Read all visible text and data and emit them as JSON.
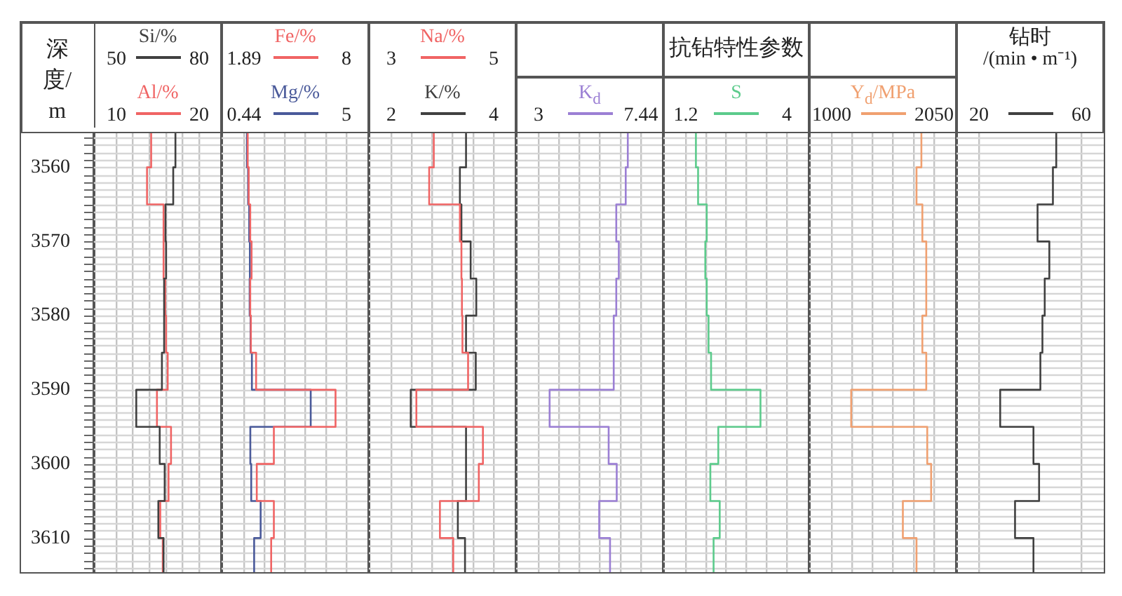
{
  "chart_data": [
    {
      "type": "step",
      "orientation": "horizontal",
      "ylabel": "深度/m",
      "x": [
        3555.4,
        3560,
        3565,
        3570,
        3575,
        3580,
        3585,
        3590,
        3595,
        3600,
        3605,
        3610,
        3614.6
      ],
      "series": [
        {
          "name": "Si/%",
          "color": "#404040",
          "values": [
            71.4,
            70.6,
            67.8,
            68.0,
            67.3,
            67.3,
            66.5,
            57.2,
            65.7,
            67.5,
            65.2,
            67.1,
            67.1
          ]
        },
        {
          "name": "Al/%",
          "color": "#f06464",
          "axis": "x2",
          "values": [
            14.2,
            13.7,
            15.7,
            15.7,
            15.9,
            16.0,
            16.2,
            14.9,
            16.6,
            16.3,
            15.3,
            15.6,
            15.6
          ]
        }
      ],
      "xlim": [
        50,
        80
      ],
      "xticks": [
        50,
        {
          "value": 56,
          "label": null
        },
        {
          "value": 62,
          "label": null
        },
        {
          "value": 68,
          "label": null
        },
        {
          "value": 74,
          "label": null
        },
        80
      ],
      "x2lim": [
        10,
        20
      ],
      "x2ticks": [
        10,
        20
      ],
      "ylim": [
        3614.6,
        3555.4
      ],
      "yticks": [
        {
          "value": 3556,
          "label": null
        },
        {
          "value": 3557,
          "label": null
        },
        {
          "value": 3558,
          "label": null
        },
        {
          "value": 3559,
          "label": null
        },
        3560,
        {
          "value": 3561,
          "label": null
        },
        {
          "value": 3562,
          "label": null
        },
        {
          "value": 3563,
          "label": null
        },
        {
          "value": 3564,
          "label": null
        },
        {
          "value": 3565,
          "label": null
        },
        {
          "value": 3566,
          "label": null
        },
        {
          "value": 3567,
          "label": null
        },
        {
          "value": 3568,
          "label": null
        },
        {
          "value": 3569,
          "label": null
        },
        3570,
        {
          "value": 3571,
          "label": null
        },
        {
          "value": 3572,
          "label": null
        },
        {
          "value": 3573,
          "label": null
        },
        {
          "value": 3574,
          "label": null
        },
        {
          "value": 3575,
          "label": null
        },
        {
          "value": 3576,
          "label": null
        },
        {
          "value": 3577,
          "label": null
        },
        {
          "value": 3578,
          "label": null
        },
        {
          "value": 3579,
          "label": null
        },
        3580,
        {
          "value": 3581,
          "label": null
        },
        {
          "value": 3582,
          "label": null
        },
        {
          "value": 3583,
          "label": null
        },
        {
          "value": 3584,
          "label": null
        },
        {
          "value": 3585,
          "label": null
        },
        {
          "value": 3586,
          "label": null
        },
        {
          "value": 3587,
          "label": null
        },
        {
          "value": 3588,
          "label": null
        },
        {
          "value": 3589,
          "label": null
        },
        3590,
        {
          "value": 3591,
          "label": null
        },
        {
          "value": 3592,
          "label": null
        },
        {
          "value": 3593,
          "label": null
        },
        {
          "value": 3594,
          "label": null
        },
        {
          "value": 3595,
          "label": null
        },
        {
          "value": 3596,
          "label": null
        },
        {
          "value": 3597,
          "label": null
        },
        {
          "value": 3598,
          "label": null
        },
        {
          "value": 3599,
          "label": null
        },
        3600,
        {
          "value": 3601,
          "label": null
        },
        {
          "value": 3602,
          "label": null
        },
        {
          "value": 3603,
          "label": null
        },
        {
          "value": 3604,
          "label": null
        },
        {
          "value": 3605,
          "label": null
        },
        {
          "value": 3606,
          "label": null
        },
        {
          "value": 3607,
          "label": null
        },
        {
          "value": 3608,
          "label": null
        },
        {
          "value": 3609,
          "label": null
        },
        3610,
        {
          "value": 3611,
          "label": null
        },
        {
          "value": 3612,
          "label": null
        },
        {
          "value": 3613,
          "label": null
        },
        {
          "value": 3614,
          "label": null
        }
      ],
      "grid": true,
      "legend": "top"
    },
    {
      "type": "step",
      "orientation": "horizontal",
      "x": [
        3555.4,
        3560,
        3565,
        3570,
        3575,
        3580,
        3585,
        3590,
        3595,
        3600,
        3605,
        3610,
        3614.6
      ],
      "series": [
        {
          "name": "Fe/%",
          "color": "#f06464",
          "values": [
            2.11,
            2.17,
            2.26,
            2.34,
            2.26,
            2.3,
            2.61,
            7.35,
            3.67,
            2.65,
            3.67,
            3.51,
            3.51
          ]
        },
        {
          "name": "Mg/%",
          "color": "#4a5a9a",
          "axis": "x2",
          "values": [
            0.57,
            0.62,
            0.67,
            0.7,
            0.69,
            0.73,
            0.79,
            3.41,
            0.72,
            0.76,
            1.18,
            0.89,
            0.89
          ]
        }
      ],
      "xlim": [
        1.89,
        8
      ],
      "xticks": [
        1.89,
        {
          "value": 3.11,
          "label": null
        },
        {
          "value": 4.33,
          "label": null
        },
        {
          "value": 5.56,
          "label": null
        },
        {
          "value": 6.78,
          "label": null
        },
        8
      ],
      "x2lim": [
        0.44,
        5
      ],
      "x2ticks": [
        0.44,
        5
      ],
      "ylim": [
        3614.6,
        3555.4
      ],
      "yticks": [
        {
          "value": 3556,
          "label": null
        },
        {
          "value": 3557,
          "label": null
        },
        {
          "value": 3558,
          "label": null
        },
        {
          "value": 3559,
          "label": null
        },
        3560,
        {
          "value": 3561,
          "label": null
        },
        {
          "value": 3562,
          "label": null
        },
        {
          "value": 3563,
          "label": null
        },
        {
          "value": 3564,
          "label": null
        },
        {
          "value": 3565,
          "label": null
        },
        {
          "value": 3566,
          "label": null
        },
        {
          "value": 3567,
          "label": null
        },
        {
          "value": 3568,
          "label": null
        },
        {
          "value": 3569,
          "label": null
        },
        3570,
        {
          "value": 3571,
          "label": null
        },
        {
          "value": 3572,
          "label": null
        },
        {
          "value": 3573,
          "label": null
        },
        {
          "value": 3574,
          "label": null
        },
        {
          "value": 3575,
          "label": null
        },
        {
          "value": 3576,
          "label": null
        },
        {
          "value": 3577,
          "label": null
        },
        {
          "value": 3578,
          "label": null
        },
        {
          "value": 3579,
          "label": null
        },
        3580,
        {
          "value": 3581,
          "label": null
        },
        {
          "value": 3582,
          "label": null
        },
        {
          "value": 3583,
          "label": null
        },
        {
          "value": 3584,
          "label": null
        },
        {
          "value": 3585,
          "label": null
        },
        {
          "value": 3586,
          "label": null
        },
        {
          "value": 3587,
          "label": null
        },
        {
          "value": 3588,
          "label": null
        },
        {
          "value": 3589,
          "label": null
        },
        3590,
        {
          "value": 3591,
          "label": null
        },
        {
          "value": 3592,
          "label": null
        },
        {
          "value": 3593,
          "label": null
        },
        {
          "value": 3594,
          "label": null
        },
        {
          "value": 3595,
          "label": null
        },
        {
          "value": 3596,
          "label": null
        },
        {
          "value": 3597,
          "label": null
        },
        {
          "value": 3598,
          "label": null
        },
        {
          "value": 3599,
          "label": null
        },
        3600,
        {
          "value": 3601,
          "label": null
        },
        {
          "value": 3602,
          "label": null
        },
        {
          "value": 3603,
          "label": null
        },
        {
          "value": 3604,
          "label": null
        },
        {
          "value": 3605,
          "label": null
        },
        {
          "value": 3606,
          "label": null
        },
        {
          "value": 3607,
          "label": null
        },
        {
          "value": 3608,
          "label": null
        },
        {
          "value": 3609,
          "label": null
        },
        3610,
        {
          "value": 3611,
          "label": null
        },
        {
          "value": 3612,
          "label": null
        },
        {
          "value": 3613,
          "label": null
        },
        {
          "value": 3614,
          "label": null
        }
      ],
      "grid": true,
      "legend": "top",
      "tick_labels": "x"
    },
    {
      "type": "step",
      "orientation": "horizontal",
      "x": [
        3555.4,
        3560,
        3565,
        3570,
        3575,
        3580,
        3585,
        3590,
        3595,
        3600,
        3605,
        3610,
        3614.6
      ],
      "series": [
        {
          "name": "Na/%",
          "color": "#f06464",
          "values": [
            3.83,
            3.74,
            4.34,
            4.37,
            4.38,
            4.39,
            4.5,
            3.49,
            4.79,
            4.71,
            3.95,
            4.21,
            4.21
          ]
        },
        {
          "name": "K/%",
          "color": "#404040",
          "axis": "x2",
          "values": [
            3.46,
            3.34,
            3.37,
            3.55,
            3.66,
            3.46,
            3.65,
            2.38,
            3.46,
            3.46,
            3.3,
            3.44,
            3.44
          ]
        }
      ],
      "xlim": [
        3,
        5
      ],
      "xticks": [
        3,
        {
          "value": 3.4,
          "label": null
        },
        {
          "value": 3.8,
          "label": null
        },
        {
          "value": 4.2,
          "label": null
        },
        {
          "value": 4.6,
          "label": null
        },
        5
      ],
      "x2lim": [
        2,
        4
      ],
      "x2ticks": [
        2,
        4
      ],
      "ylim": [
        3614.6,
        3555.4
      ],
      "yticks": [
        {
          "value": 3556,
          "label": null
        },
        {
          "value": 3557,
          "label": null
        },
        {
          "value": 3558,
          "label": null
        },
        {
          "value": 3559,
          "label": null
        },
        3560,
        {
          "value": 3561,
          "label": null
        },
        {
          "value": 3562,
          "label": null
        },
        {
          "value": 3563,
          "label": null
        },
        {
          "value": 3564,
          "label": null
        },
        {
          "value": 3565,
          "label": null
        },
        {
          "value": 3566,
          "label": null
        },
        {
          "value": 3567,
          "label": null
        },
        {
          "value": 3568,
          "label": null
        },
        {
          "value": 3569,
          "label": null
        },
        3570,
        {
          "value": 3571,
          "label": null
        },
        {
          "value": 3572,
          "label": null
        },
        {
          "value": 3573,
          "label": null
        },
        {
          "value": 3574,
          "label": null
        },
        {
          "value": 3575,
          "label": null
        },
        {
          "value": 3576,
          "label": null
        },
        {
          "value": 3577,
          "label": null
        },
        {
          "value": 3578,
          "label": null
        },
        {
          "value": 3579,
          "label": null
        },
        3580,
        {
          "value": 3581,
          "label": null
        },
        {
          "value": 3582,
          "label": null
        },
        {
          "value": 3583,
          "label": null
        },
        {
          "value": 3584,
          "label": null
        },
        {
          "value": 3585,
          "label": null
        },
        {
          "value": 3586,
          "label": null
        },
        {
          "value": 3587,
          "label": null
        },
        {
          "value": 3588,
          "label": null
        },
        {
          "value": 3589,
          "label": null
        },
        3590,
        {
          "value": 3591,
          "label": null
        },
        {
          "value": 3592,
          "label": null
        },
        {
          "value": 3593,
          "label": null
        },
        {
          "value": 3594,
          "label": null
        },
        {
          "value": 3595,
          "label": null
        },
        {
          "value": 3596,
          "label": null
        },
        {
          "value": 3597,
          "label": null
        },
        {
          "value": 3598,
          "label": null
        },
        {
          "value": 3599,
          "label": null
        },
        3600,
        {
          "value": 3601,
          "label": null
        },
        {
          "value": 3602,
          "label": null
        },
        {
          "value": 3603,
          "label": null
        },
        {
          "value": 3604,
          "label": null
        },
        {
          "value": 3605,
          "label": null
        },
        {
          "value": 3606,
          "label": null
        },
        {
          "value": 3607,
          "label": null
        },
        {
          "value": 3608,
          "label": null
        },
        {
          "value": 3609,
          "label": null
        },
        3610,
        {
          "value": 3611,
          "label": null
        },
        {
          "value": 3612,
          "label": null
        },
        {
          "value": 3613,
          "label": null
        },
        {
          "value": 3614,
          "label": null
        }
      ],
      "grid": true,
      "legend": "top",
      "tick_labels": "x"
    },
    {
      "type": "step",
      "orientation": "horizontal",
      "x": [
        3555.4,
        3560,
        3565,
        3570,
        3575,
        3580,
        3585,
        3590,
        3595,
        3600,
        3605,
        3610,
        3614.6
      ],
      "series": [
        {
          "name": "K$_{d}$",
          "color": "#9b7fd4",
          "values": [
            6.87,
            6.78,
            6.37,
            6.48,
            6.37,
            6.26,
            6.26,
            3.48,
            6.04,
            6.39,
            5.63,
            6.1,
            6.1
          ]
        }
      ],
      "xlim": [
        3,
        7.44
      ],
      "xticks": [
        3,
        {
          "value": 3.89,
          "label": null
        },
        {
          "value": 4.78,
          "label": null
        },
        {
          "value": 5.66,
          "label": null
        },
        {
          "value": 6.55,
          "label": null
        },
        7.44
      ],
      "ylim": [
        3614.6,
        3555.4
      ],
      "yticks": [
        {
          "value": 3556,
          "label": null
        },
        {
          "value": 3557,
          "label": null
        },
        {
          "value": 3558,
          "label": null
        },
        {
          "value": 3559,
          "label": null
        },
        3560,
        {
          "value": 3561,
          "label": null
        },
        {
          "value": 3562,
          "label": null
        },
        {
          "value": 3563,
          "label": null
        },
        {
          "value": 3564,
          "label": null
        },
        {
          "value": 3565,
          "label": null
        },
        {
          "value": 3566,
          "label": null
        },
        {
          "value": 3567,
          "label": null
        },
        {
          "value": 3568,
          "label": null
        },
        {
          "value": 3569,
          "label": null
        },
        3570,
        {
          "value": 3571,
          "label": null
        },
        {
          "value": 3572,
          "label": null
        },
        {
          "value": 3573,
          "label": null
        },
        {
          "value": 3574,
          "label": null
        },
        {
          "value": 3575,
          "label": null
        },
        {
          "value": 3576,
          "label": null
        },
        {
          "value": 3577,
          "label": null
        },
        {
          "value": 3578,
          "label": null
        },
        {
          "value": 3579,
          "label": null
        },
        3580,
        {
          "value": 3581,
          "label": null
        },
        {
          "value": 3582,
          "label": null
        },
        {
          "value": 3583,
          "label": null
        },
        {
          "value": 3584,
          "label": null
        },
        {
          "value": 3585,
          "label": null
        },
        {
          "value": 3586,
          "label": null
        },
        {
          "value": 3587,
          "label": null
        },
        {
          "value": 3588,
          "label": null
        },
        {
          "value": 3589,
          "label": null
        },
        3590,
        {
          "value": 3591,
          "label": null
        },
        {
          "value": 3592,
          "label": null
        },
        {
          "value": 3593,
          "label": null
        },
        {
          "value": 3594,
          "label": null
        },
        {
          "value": 3595,
          "label": null
        },
        {
          "value": 3596,
          "label": null
        },
        {
          "value": 3597,
          "label": null
        },
        {
          "value": 3598,
          "label": null
        },
        {
          "value": 3599,
          "label": null
        },
        3600,
        {
          "value": 3601,
          "label": null
        },
        {
          "value": 3602,
          "label": null
        },
        {
          "value": 3603,
          "label": null
        },
        {
          "value": 3604,
          "label": null
        },
        {
          "value": 3605,
          "label": null
        },
        {
          "value": 3606,
          "label": null
        },
        {
          "value": 3607,
          "label": null
        },
        {
          "value": 3608,
          "label": null
        },
        {
          "value": 3609,
          "label": null
        },
        3610,
        {
          "value": 3611,
          "label": null
        },
        {
          "value": 3612,
          "label": null
        },
        {
          "value": 3613,
          "label": null
        },
        {
          "value": 3614,
          "label": null
        }
      ],
      "grid": true,
      "legend": "top",
      "tick_labels": "x"
    },
    {
      "type": "step",
      "orientation": "horizontal",
      "title": "抗钻特性参数",
      "x": [
        3555.4,
        3560,
        3565,
        3570,
        3575,
        3580,
        3585,
        3590,
        3595,
        3600,
        3605,
        3610,
        3614.6
      ],
      "series": [
        {
          "name": "S",
          "color": "#5ccb8c",
          "values": [
            1.48,
            1.54,
            1.78,
            1.74,
            1.78,
            1.83,
            1.9,
            3.27,
            2.1,
            1.88,
            2.14,
            1.97,
            1.97
          ]
        }
      ],
      "xlim": [
        1.2,
        4
      ],
      "xticks": [
        1.2,
        {
          "value": 1.76,
          "label": null
        },
        {
          "value": 2.32,
          "label": null
        },
        {
          "value": 2.88,
          "label": null
        },
        {
          "value": 3.44,
          "label": null
        },
        4
      ],
      "ylim": [
        3614.6,
        3555.4
      ],
      "yticks": [
        {
          "value": 3556,
          "label": null
        },
        {
          "value": 3557,
          "label": null
        },
        {
          "value": 3558,
          "label": null
        },
        {
          "value": 3559,
          "label": null
        },
        3560,
        {
          "value": 3561,
          "label": null
        },
        {
          "value": 3562,
          "label": null
        },
        {
          "value": 3563,
          "label": null
        },
        {
          "value": 3564,
          "label": null
        },
        {
          "value": 3565,
          "label": null
        },
        {
          "value": 3566,
          "label": null
        },
        {
          "value": 3567,
          "label": null
        },
        {
          "value": 3568,
          "label": null
        },
        {
          "value": 3569,
          "label": null
        },
        3570,
        {
          "value": 3571,
          "label": null
        },
        {
          "value": 3572,
          "label": null
        },
        {
          "value": 3573,
          "label": null
        },
        {
          "value": 3574,
          "label": null
        },
        {
          "value": 3575,
          "label": null
        },
        {
          "value": 3576,
          "label": null
        },
        {
          "value": 3577,
          "label": null
        },
        {
          "value": 3578,
          "label": null
        },
        {
          "value": 3579,
          "label": null
        },
        3580,
        {
          "value": 3581,
          "label": null
        },
        {
          "value": 3582,
          "label": null
        },
        {
          "value": 3583,
          "label": null
        },
        {
          "value": 3584,
          "label": null
        },
        {
          "value": 3585,
          "label": null
        },
        {
          "value": 3586,
          "label": null
        },
        {
          "value": 3587,
          "label": null
        },
        {
          "value": 3588,
          "label": null
        },
        {
          "value": 3589,
          "label": null
        },
        3590,
        {
          "value": 3591,
          "label": null
        },
        {
          "value": 3592,
          "label": null
        },
        {
          "value": 3593,
          "label": null
        },
        {
          "value": 3594,
          "label": null
        },
        {
          "value": 3595,
          "label": null
        },
        {
          "value": 3596,
          "label": null
        },
        {
          "value": 3597,
          "label": null
        },
        {
          "value": 3598,
          "label": null
        },
        {
          "value": 3599,
          "label": null
        },
        3600,
        {
          "value": 3601,
          "label": null
        },
        {
          "value": 3602,
          "label": null
        },
        {
          "value": 3603,
          "label": null
        },
        {
          "value": 3604,
          "label": null
        },
        {
          "value": 3605,
          "label": null
        },
        {
          "value": 3606,
          "label": null
        },
        {
          "value": 3607,
          "label": null
        },
        {
          "value": 3608,
          "label": null
        },
        {
          "value": 3609,
          "label": null
        },
        3610,
        {
          "value": 3611,
          "label": null
        },
        {
          "value": 3612,
          "label": null
        },
        {
          "value": 3613,
          "label": null
        },
        {
          "value": 3614,
          "label": null
        }
      ],
      "grid": true,
      "legend": "top",
      "tick_labels": "x"
    },
    {
      "type": "step",
      "orientation": "horizontal",
      "x": [
        3555.4,
        3560,
        3565,
        3570,
        3575,
        3580,
        3585,
        3590,
        3595,
        3600,
        3605,
        3610,
        3614.6
      ],
      "series": [
        {
          "name": "Y$_{d}$/MPa",
          "color": "#f0a070",
          "values": [
            1920,
            1870,
            1930,
            1970,
            1970,
            1930,
            1970,
            1200,
            1980,
            2020,
            1730,
            1870,
            1870
          ]
        }
      ],
      "xlim": [
        1000,
        2050
      ],
      "xticks": [
        1000,
        {
          "value": 1210,
          "label": null
        },
        {
          "value": 1420,
          "label": null
        },
        {
          "value": 1630,
          "label": null
        },
        {
          "value": 1840,
          "label": null
        },
        2050
      ],
      "ylim": [
        3614.6,
        3555.4
      ],
      "yticks": [
        {
          "value": 3556,
          "label": null
        },
        {
          "value": 3557,
          "label": null
        },
        {
          "value": 3558,
          "label": null
        },
        {
          "value": 3559,
          "label": null
        },
        3560,
        {
          "value": 3561,
          "label": null
        },
        {
          "value": 3562,
          "label": null
        },
        {
          "value": 3563,
          "label": null
        },
        {
          "value": 3564,
          "label": null
        },
        {
          "value": 3565,
          "label": null
        },
        {
          "value": 3566,
          "label": null
        },
        {
          "value": 3567,
          "label": null
        },
        {
          "value": 3568,
          "label": null
        },
        {
          "value": 3569,
          "label": null
        },
        3570,
        {
          "value": 3571,
          "label": null
        },
        {
          "value": 3572,
          "label": null
        },
        {
          "value": 3573,
          "label": null
        },
        {
          "value": 3574,
          "label": null
        },
        {
          "value": 3575,
          "label": null
        },
        {
          "value": 3576,
          "label": null
        },
        {
          "value": 3577,
          "label": null
        },
        {
          "value": 3578,
          "label": null
        },
        {
          "value": 3579,
          "label": null
        },
        3580,
        {
          "value": 3581,
          "label": null
        },
        {
          "value": 3582,
          "label": null
        },
        {
          "value": 3583,
          "label": null
        },
        {
          "value": 3584,
          "label": null
        },
        {
          "value": 3585,
          "label": null
        },
        {
          "value": 3586,
          "label": null
        },
        {
          "value": 3587,
          "label": null
        },
        {
          "value": 3588,
          "label": null
        },
        {
          "value": 3589,
          "label": null
        },
        3590,
        {
          "value": 3591,
          "label": null
        },
        {
          "value": 3592,
          "label": null
        },
        {
          "value": 3593,
          "label": null
        },
        {
          "value": 3594,
          "label": null
        },
        {
          "value": 3595,
          "label": null
        },
        {
          "value": 3596,
          "label": null
        },
        {
          "value": 3597,
          "label": null
        },
        {
          "value": 3598,
          "label": null
        },
        {
          "value": 3599,
          "label": null
        },
        3600,
        {
          "value": 3601,
          "label": null
        },
        {
          "value": 3602,
          "label": null
        },
        {
          "value": 3603,
          "label": null
        },
        {
          "value": 3604,
          "label": null
        },
        {
          "value": 3605,
          "label": null
        },
        {
          "value": 3606,
          "label": null
        },
        {
          "value": 3607,
          "label": null
        },
        {
          "value": 3608,
          "label": null
        },
        {
          "value": 3609,
          "label": null
        },
        3610,
        {
          "value": 3611,
          "label": null
        },
        {
          "value": 3612,
          "label": null
        },
        {
          "value": 3613,
          "label": null
        },
        {
          "value": 3614,
          "label": null
        }
      ],
      "grid": true,
      "legend": "top",
      "tick_labels": "x"
    },
    {
      "type": "step",
      "orientation": "horizontal",
      "title": "钻时",
      "xlabel": "/(min • m⁻¹)",
      "x": [
        3555.4,
        3560,
        3565,
        3570,
        3575,
        3580,
        3585,
        3590,
        3595,
        3600,
        3605,
        3610,
        3614.6
      ],
      "series": [
        {
          "color": "#404040",
          "values": [
            50.2,
            48.9,
            42.9,
            47.5,
            45.7,
            44.8,
            44.0,
            28.3,
            41.3,
            43.5,
            34.1,
            41.3,
            41.3
          ]
        }
      ],
      "xlim": [
        20,
        60
      ],
      "xticks": [
        20,
        60
      ],
      "ylim": [
        3614.6,
        3555.4
      ],
      "yticks": [
        {
          "value": 3556,
          "label": null
        },
        {
          "value": 3557,
          "label": null
        },
        {
          "value": 3558,
          "label": null
        },
        {
          "value": 3559,
          "label": null
        },
        3560,
        {
          "value": 3561,
          "label": null
        },
        {
          "value": 3562,
          "label": null
        },
        {
          "value": 3563,
          "label": null
        },
        {
          "value": 3564,
          "label": null
        },
        {
          "value": 3565,
          "label": null
        },
        {
          "value": 3566,
          "label": null
        },
        {
          "value": 3567,
          "label": null
        },
        {
          "value": 3568,
          "label": null
        },
        {
          "value": 3569,
          "label": null
        },
        3570,
        {
          "value": 3571,
          "label": null
        },
        {
          "value": 3572,
          "label": null
        },
        {
          "value": 3573,
          "label": null
        },
        {
          "value": 3574,
          "label": null
        },
        {
          "value": 3575,
          "label": null
        },
        {
          "value": 3576,
          "label": null
        },
        {
          "value": 3577,
          "label": null
        },
        {
          "value": 3578,
          "label": null
        },
        {
          "value": 3579,
          "label": null
        },
        3580,
        {
          "value": 3581,
          "label": null
        },
        {
          "value": 3582,
          "label": null
        },
        {
          "value": 3583,
          "label": null
        },
        {
          "value": 3584,
          "label": null
        },
        {
          "value": 3585,
          "label": null
        },
        {
          "value": 3586,
          "label": null
        },
        {
          "value": 3587,
          "label": null
        },
        {
          "value": 3588,
          "label": null
        },
        {
          "value": 3589,
          "label": null
        },
        3590,
        {
          "value": 3591,
          "label": null
        },
        {
          "value": 3592,
          "label": null
        },
        {
          "value": 3593,
          "label": null
        },
        {
          "value": 3594,
          "label": null
        },
        {
          "value": 3595,
          "label": null
        },
        {
          "value": 3596,
          "label": null
        },
        {
          "value": 3597,
          "label": null
        },
        {
          "value": 3598,
          "label": null
        },
        {
          "value": 3599,
          "label": null
        },
        3600,
        {
          "value": 3601,
          "label": null
        },
        {
          "value": 3602,
          "label": null
        },
        {
          "value": 3603,
          "label": null
        },
        {
          "value": 3604,
          "label": null
        },
        {
          "value": 3605,
          "label": null
        },
        {
          "value": 3606,
          "label": null
        },
        {
          "value": 3607,
          "label": null
        },
        {
          "value": 3608,
          "label": null
        },
        {
          "value": 3609,
          "label": null
        },
        3610,
        {
          "value": 3611,
          "label": null
        },
        {
          "value": 3612,
          "label": null
        },
        {
          "value": 3613,
          "label": null
        },
        {
          "value": 3614,
          "label": null
        }
      ],
      "grid": true,
      "tick_labels": "x"
    }
  ]
}
